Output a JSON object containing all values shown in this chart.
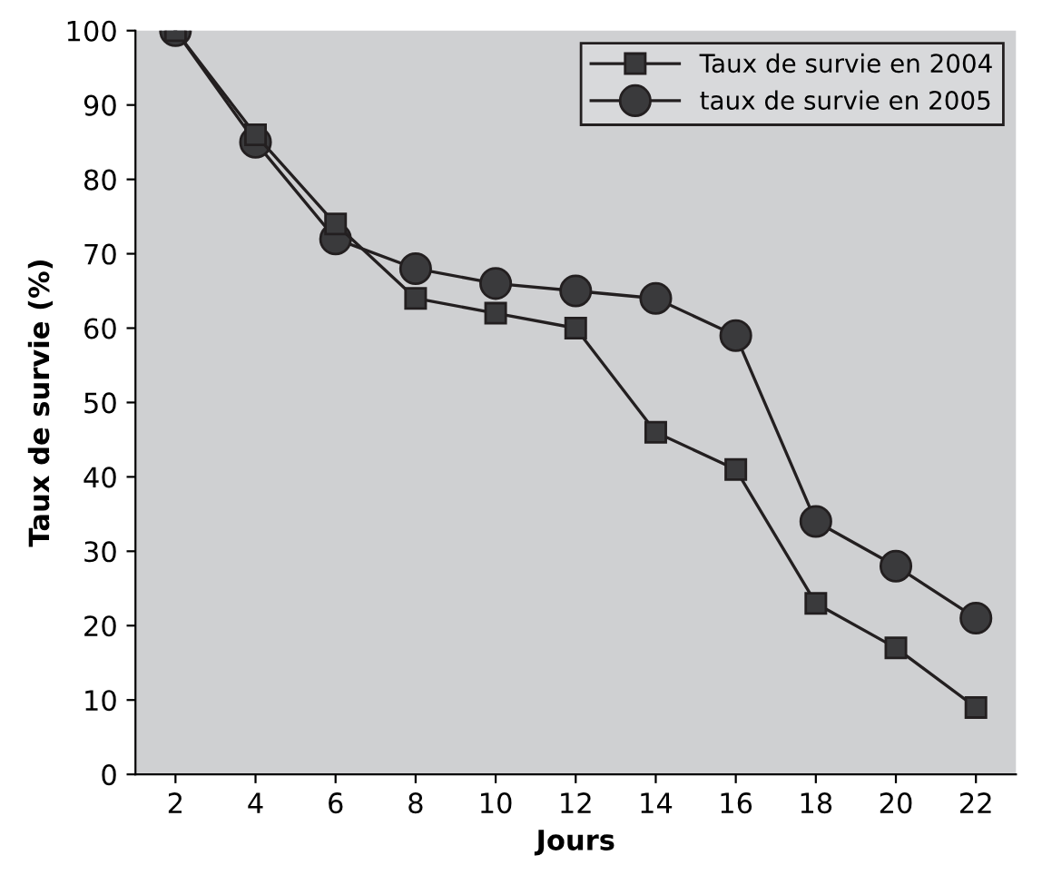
{
  "chart_data": {
    "type": "line",
    "xlabel": "Jours",
    "ylabel": "Taux de survie (%)",
    "x": [
      2,
      4,
      6,
      8,
      10,
      12,
      14,
      16,
      18,
      20,
      22
    ],
    "series": [
      {
        "name": "Taux de survie en 2004",
        "color": "#231f20",
        "marker": "square",
        "values": [
          100,
          86,
          74,
          64,
          62,
          60,
          46,
          41,
          23,
          17,
          9
        ]
      },
      {
        "name": "taux de survie en 2005",
        "color": "#231f20",
        "marker": "circle",
        "values": [
          100,
          85,
          72,
          68,
          66,
          65,
          64,
          59,
          34,
          28,
          21
        ]
      }
    ],
    "xlim": [
      1,
      23
    ],
    "xticks": [
      2,
      4,
      6,
      8,
      10,
      12,
      14,
      16,
      18,
      20,
      22
    ],
    "ylim": [
      0,
      100
    ],
    "yticks": [
      0,
      10,
      20,
      30,
      40,
      50,
      60,
      70,
      80,
      90,
      100
    ],
    "grid": false,
    "legend": "top right",
    "line_style": "solid"
  }
}
